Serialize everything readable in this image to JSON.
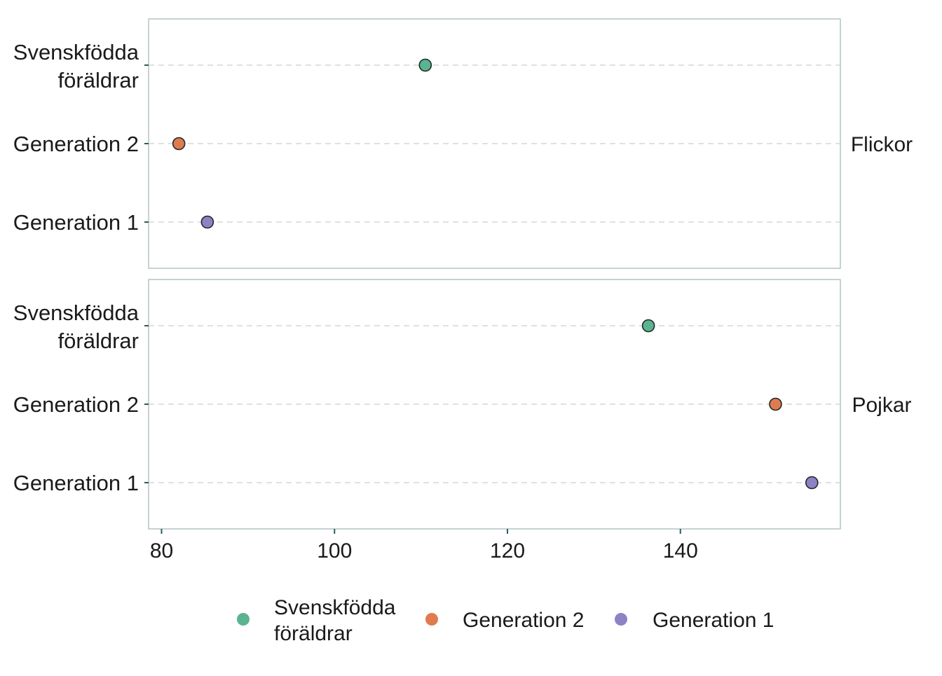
{
  "chart_data": {
    "type": "scatter",
    "title": "",
    "xlabel": "",
    "ylabel": "",
    "xlim": [
      78.5,
      158.5
    ],
    "x_ticks": [
      80,
      100,
      120,
      140
    ],
    "categories": [
      "Svenskfödda föräldrar",
      "Generation 2",
      "Generation 1"
    ],
    "grid": "horizontal dashed",
    "legend_position": "bottom",
    "panels": [
      {
        "label": "Flickor",
        "points": [
          {
            "category": "Svenskfödda föräldrar",
            "x": 110.5
          },
          {
            "category": "Generation 2",
            "x": 82.0
          },
          {
            "category": "Generation 1",
            "x": 85.3
          }
        ]
      },
      {
        "label": "Pojkar",
        "points": [
          {
            "category": "Svenskfödda föräldrar",
            "x": 136.3
          },
          {
            "category": "Generation 2",
            "x": 151.0
          },
          {
            "category": "Generation 1",
            "x": 155.2
          }
        ]
      }
    ],
    "legend": [
      {
        "name": "Svenskfödda föräldrar",
        "lines": [
          "Svenskfödda",
          "föräldrar"
        ],
        "color": "#5ab490"
      },
      {
        "name": "Generation 2",
        "lines": [
          "Generation 2"
        ],
        "color": "#e07b4f"
      },
      {
        "name": "Generation 1",
        "lines": [
          "Generation 1"
        ],
        "color": "#8e82c4"
      }
    ],
    "y_tick_labels": [
      {
        "category": "Svenskfödda föräldrar",
        "lines": [
          "Svenskfödda",
          "föräldrar"
        ]
      },
      {
        "category": "Generation 2",
        "lines": [
          "Generation 2"
        ]
      },
      {
        "category": "Generation 1",
        "lines": [
          "Generation 1"
        ]
      }
    ],
    "colors": {
      "panel_border": "#9fb3b5",
      "grid": "#c9cfd0",
      "tick": "#2e5a60",
      "point_stroke": "#1e2a2a"
    }
  }
}
